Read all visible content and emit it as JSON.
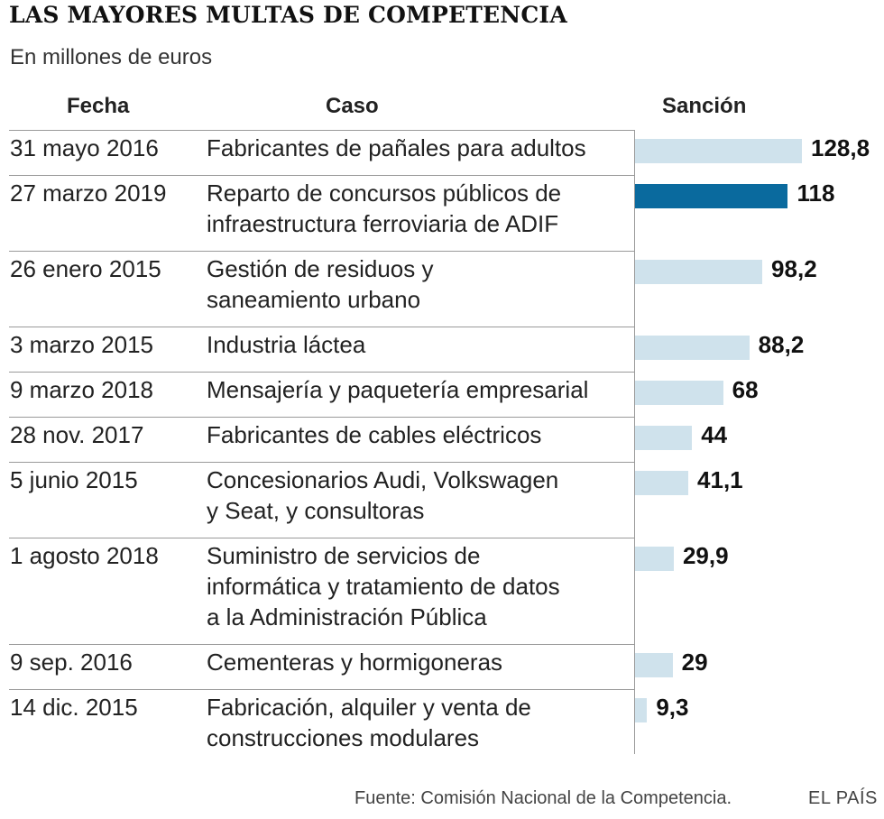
{
  "title": "LAS MAYORES MULTAS DE COMPETENCIA",
  "subtitle": "En millones de euros",
  "headers": {
    "fecha": "Fecha",
    "caso": "Caso",
    "sancion": "Sanción"
  },
  "colors": {
    "bar": "#cfe2ec",
    "highlight": "#0a6a9e"
  },
  "chart_data": {
    "type": "bar",
    "title": "LAS MAYORES MULTAS DE COMPETENCIA",
    "subtitle": "En millones de euros",
    "xlabel": "Sanción",
    "ylabel": "Caso",
    "xlim": [
      0,
      128.8
    ],
    "highlight_index": 1,
    "rows": [
      {
        "fecha": "31 mayo 2016",
        "caso": "Fabricantes de pañales para adultos",
        "value": 128.8,
        "label": "128,8"
      },
      {
        "fecha": "27 marzo 2019",
        "caso": "Reparto de concursos públicos de\ninfraestructura ferroviaria de ADIF",
        "value": 118,
        "label": "118"
      },
      {
        "fecha": "26 enero 2015",
        "caso": "Gestión de residuos y\nsaneamiento urbano",
        "value": 98.2,
        "label": "98,2"
      },
      {
        "fecha": "3 marzo 2015",
        "caso": "Industria láctea",
        "value": 88.2,
        "label": "88,2"
      },
      {
        "fecha": "9 marzo 2018",
        "caso": "Mensajería y paquetería empresarial",
        "value": 68,
        "label": "68"
      },
      {
        "fecha": "28 nov. 2017",
        "caso": "Fabricantes de cables eléctricos",
        "value": 44,
        "label": "44"
      },
      {
        "fecha": "5 junio 2015",
        "caso": "Concesionarios Audi, Volkswagen\ny Seat, y consultoras",
        "value": 41.1,
        "label": "41,1"
      },
      {
        "fecha": "1 agosto 2018",
        "caso": "Suministro de servicios de\ninformática y tratamiento de datos\na la Administración Pública",
        "value": 29.9,
        "label": "29,9"
      },
      {
        "fecha": "9 sep. 2016",
        "caso": "Cementeras y hormigoneras",
        "value": 29,
        "label": "29"
      },
      {
        "fecha": "14 dic. 2015",
        "caso": "Fabricación, alquiler y venta de\nconstrucciones modulares",
        "value": 9.3,
        "label": "9,3"
      }
    ]
  },
  "footer": {
    "source": "Fuente: Comisión Nacional de la Competencia.",
    "brand": "EL PAÍS"
  }
}
